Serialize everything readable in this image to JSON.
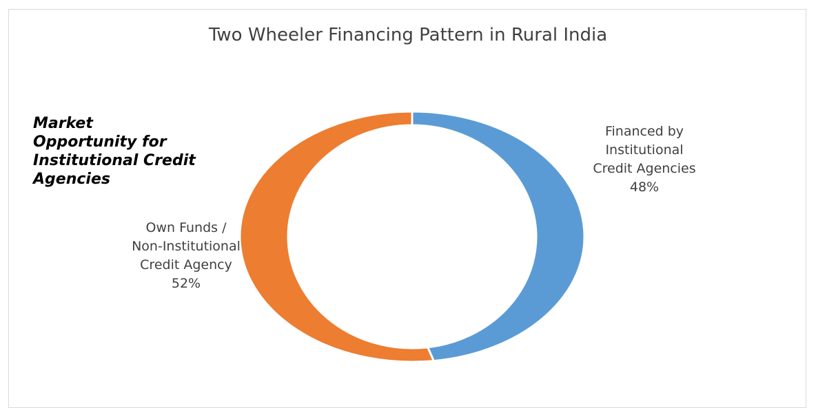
{
  "chart_data": {
    "type": "donut",
    "title": "Two Wheeler Financing Pattern in Rural India",
    "categories": [
      "Financed by\nInstitutional\nCredit Agencies",
      "Own Funds /\nNon-Institutional\nCredit Agency"
    ],
    "values": [
      48,
      52
    ],
    "value_labels": [
      "48%",
      "52%"
    ],
    "colors": [
      "#5b9bd5",
      "#ed7d31"
    ],
    "annotation": "Market\nOpportunity for\nInstitutional Credit\nAgencies"
  }
}
